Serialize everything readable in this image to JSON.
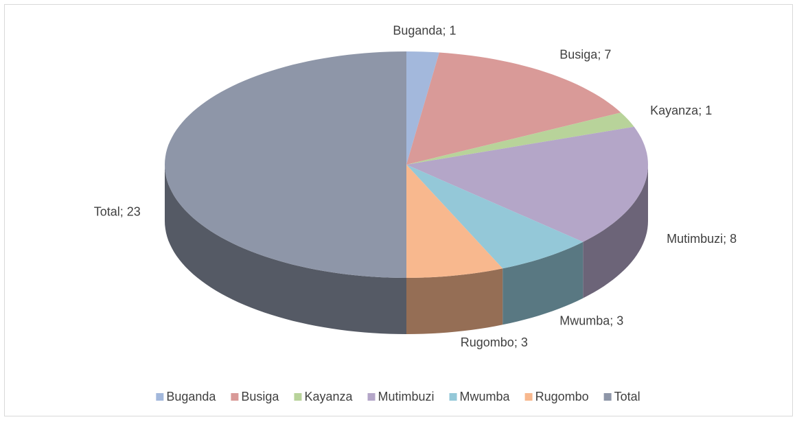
{
  "chart_data": {
    "type": "pie3d",
    "categories": [
      "Buganda",
      "Busiga",
      "Kayanza",
      "Mutimbuzi",
      "Mwumba",
      "Rugombo",
      "Total"
    ],
    "values": [
      1,
      7,
      1,
      8,
      3,
      3,
      23
    ],
    "value_labels": [
      "Buganda; 1",
      "Busiga; 7",
      "Kayanza; 1",
      "Mutimbuzi; 8",
      "Mwumba; 3",
      "Rugombo; 3",
      "Total; 23"
    ],
    "colors": [
      "#a3b8dc",
      "#d99a98",
      "#b8d39a",
      "#b4a6c8",
      "#94c8d8",
      "#f8b88e",
      "#8e96a8"
    ],
    "legend": "bottom"
  }
}
